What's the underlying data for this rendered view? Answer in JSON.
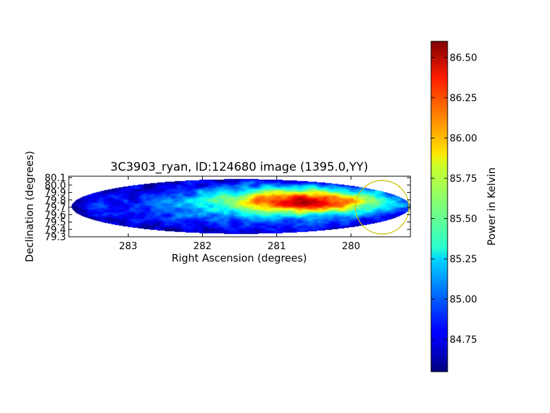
{
  "chart_data": {
    "type": "heatmap",
    "title": "3C3903_ryan, ID:124680 image (1395.0,YY)",
    "xlabel": "Right Ascension (degrees)",
    "ylabel": "Declination (degrees)",
    "xlim": [
      283.8,
      279.2
    ],
    "ylim": [
      79.3,
      80.12
    ],
    "x_ticks": [
      283,
      282,
      281,
      280
    ],
    "x_tick_labels": [
      "283",
      "282",
      "281",
      "280"
    ],
    "y_ticks": [
      79.3,
      79.4,
      79.5,
      79.6,
      79.7,
      79.8,
      79.9,
      80.0,
      80.1
    ],
    "y_tick_labels": [
      "79.3",
      "79.4",
      "79.5",
      "79.6",
      "79.7",
      "79.8",
      "79.9",
      "80.0",
      "80.1"
    ],
    "footprint": {
      "ra_center": 281.48,
      "dec_center": 79.71,
      "ra_half_width": 2.28,
      "dec_half_height": 0.37
    },
    "hotspot": {
      "ra": 280.6,
      "dec": 79.78,
      "value": 86.58
    },
    "value_range": [
      84.55,
      86.6
    ],
    "circle_marker": {
      "ra": 279.58,
      "dec": 79.7,
      "radius_ra": 0.36,
      "color": "#c8c000"
    },
    "colorbar": {
      "label": "Power in Kelvin",
      "min": 84.55,
      "max": 86.6,
      "ticks": [
        84.75,
        85.0,
        85.25,
        85.5,
        85.75,
        86.0,
        86.25,
        86.5
      ],
      "tick_labels": [
        "84.75",
        "85.00",
        "85.25",
        "85.50",
        "85.75",
        "86.00",
        "86.25",
        "86.50"
      ],
      "colormap": "jet"
    }
  }
}
